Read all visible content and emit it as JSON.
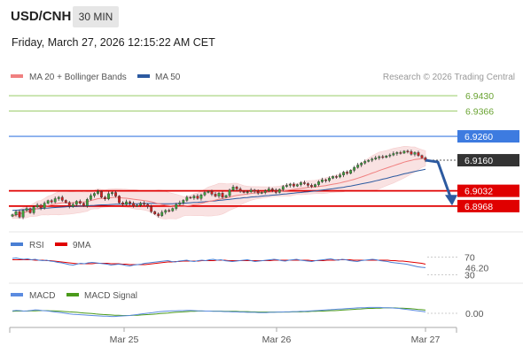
{
  "header": {
    "symbol": "USD/CNH",
    "timeframe": "30 MIN",
    "datetime": "Friday, March 27, 2026 12:15:22 AM CET"
  },
  "copyright": "Research © 2026 Trading Central",
  "colors": {
    "ma20": "#f08080",
    "ma50": "#2c5aa0",
    "bollinger_fill": "#f7d7d7",
    "resistance": "#99cc66",
    "pivot": "#3d7be0",
    "support": "#e00000",
    "price_label": "#333333",
    "rsi": "#4a7fd4",
    "rsi_ma": "#e00000",
    "macd": "#5b8be0",
    "macd_signal": "#4a9a1a",
    "arrow": "#2c5aa0"
  },
  "chart_data": [
    {
      "type": "candlestick",
      "legend": [
        "MA 20 + Bollinger Bands",
        "MA 50"
      ],
      "ylim": [
        6.8875,
        6.9475
      ],
      "x_ticks": [
        "Mar 25",
        "Mar 26",
        "Mar 27"
      ],
      "levels": [
        {
          "label": "6.9430",
          "value": 6.943,
          "kind": "resistance"
        },
        {
          "label": "6.9366",
          "value": 6.9366,
          "kind": "resistance"
        },
        {
          "label": "6.9260",
          "value": 6.926,
          "kind": "pivot"
        },
        {
          "label": "6.9160",
          "value": 6.916,
          "kind": "last"
        },
        {
          "label": "6.9032",
          "value": 6.9032,
          "kind": "support"
        },
        {
          "label": "6.8968",
          "value": 6.8968,
          "kind": "support"
        }
      ],
      "forecast_arrow": {
        "from": 6.916,
        "to": 6.8985
      },
      "closes": [
        6.8932,
        6.8945,
        6.8922,
        6.895,
        6.8958,
        6.894,
        6.8965,
        6.8972,
        6.896,
        6.898,
        6.8991,
        6.8985,
        6.8999,
        6.9005,
        6.8992,
        6.8983,
        6.8966,
        6.8975,
        6.8988,
        6.898,
        6.8969,
        6.8996,
        6.9012,
        6.9021,
        6.903,
        6.9005,
        6.8998,
        6.902,
        6.9025,
        6.901,
        6.8982,
        6.8975,
        6.8986,
        6.898,
        6.8968,
        6.8972,
        6.898,
        6.8975,
        6.8966,
        6.8945,
        6.8935,
        6.8928,
        6.8942,
        6.895,
        6.8948,
        6.8958,
        6.8975,
        6.8982,
        6.8992,
        6.9005,
        6.9002,
        6.901,
        6.9,
        6.9015,
        6.9025,
        6.903,
        6.9018,
        6.901,
        6.9022,
        6.9005,
        6.9012,
        6.9035,
        6.9048,
        6.904,
        6.903,
        6.9025,
        6.9028,
        6.9035,
        6.903,
        6.9022,
        6.9025,
        6.9032,
        6.904,
        6.9035,
        6.9025,
        6.9038,
        6.905,
        6.9055,
        6.906,
        6.9052,
        6.9058,
        6.9066,
        6.9062,
        6.9055,
        6.905,
        6.9058,
        6.907,
        6.9078,
        6.9075,
        6.9085,
        6.9092,
        6.909,
        6.9098,
        6.911,
        6.9105,
        6.9118,
        6.913,
        6.914,
        6.9148,
        6.9155,
        6.916,
        6.9165,
        6.917,
        6.9175,
        6.9172,
        6.9178,
        6.9182,
        6.9188,
        6.9192,
        6.919,
        6.9198,
        6.9196,
        6.9185,
        6.9192,
        6.918,
        6.917,
        6.916
      ],
      "ma20": [
        6.8925,
        6.8931,
        6.8935,
        6.894,
        6.8945,
        6.8948,
        6.8952,
        6.8958,
        6.8961,
        6.8966,
        6.897,
        6.8973,
        6.8977,
        6.898,
        6.8982,
        6.8982,
        6.8981,
        6.8982,
        6.8984,
        6.8985,
        6.8985,
        6.8987,
        6.8991,
        6.8995,
        6.8999,
        6.9,
        6.9,
        6.9002,
        6.9004,
        6.9005,
        6.9004,
        6.9002,
        6.9001,
        6.8999,
        6.8997,
        6.8995,
        6.8993,
        6.8991,
        6.8989,
        6.8986,
        6.8982,
        6.8978,
        6.8975,
        6.8972,
        6.897,
        6.8968,
        6.8966,
        6.8966,
        6.8967,
        6.8969,
        6.8971,
        6.8974,
        6.8976,
        6.8979,
        6.8983,
        6.8987,
        6.899,
        6.8993,
        6.8997,
        6.8999,
        6.9002,
        6.9006,
        6.901,
        6.9013,
        6.9015,
        6.9017,
        6.9019,
        6.9021,
        6.9023,
        6.9024,
        6.9025,
        6.9026,
        6.9027,
        6.9028,
        6.9029,
        6.903,
        6.9032,
        6.9034,
        6.9036,
        6.9038,
        6.904,
        6.9042,
        6.9044,
        6.9046,
        6.9047,
        6.9048,
        6.905,
        6.9052,
        6.9054,
        6.9057,
        6.906,
        6.9062,
        6.9065,
        6.9069,
        6.9072,
        6.9076,
        6.908,
        6.9085,
        6.909,
        6.9095,
        6.91,
        6.9106,
        6.9111,
        6.9117,
        6.9122,
        6.9127,
        6.9132,
        6.9137,
        6.9142,
        6.9147,
        6.9152,
        6.9156,
        6.9159,
        6.9163,
        6.9165,
        6.9167,
        6.9168
      ],
      "ma50": [
        6.895,
        6.8951,
        6.8952,
        6.8953,
        6.8954,
        6.8955,
        6.8956,
        6.8957,
        6.8958,
        6.8959,
        6.896,
        6.8961,
        6.8962,
        6.8963,
        6.8964,
        6.8965,
        6.8966,
        6.8966,
        6.8967,
        6.8968,
        6.8968,
        6.8969,
        6.897,
        6.8971,
        6.8972,
        6.8973,
        6.8973,
        6.8974,
        6.8975,
        6.8976,
        6.8976,
        6.8977,
        6.8977,
        6.8978,
        6.8978,
        6.8978,
        6.8979,
        6.8979,
        6.8979,
        6.8979,
        6.8979,
        6.8978,
        6.8978,
        6.8978,
        6.8978,
        6.8978,
        6.8979,
        6.8979,
        6.898,
        6.8981,
        6.8982,
        6.8983,
        6.8984,
        6.8985,
        6.8986,
        6.8988,
        6.8989,
        6.899,
        6.8992,
        6.8993,
        6.8995,
        6.8996,
        6.8998,
        6.9,
        6.9001,
        6.9003,
        6.9004,
        6.9006,
        6.9007,
        6.9008,
        6.901,
        6.9011,
        6.9012,
        6.9014,
        6.9015,
        6.9016,
        6.9018,
        6.9019,
        6.9021,
        6.9022,
        6.9024,
        6.9025,
        6.9027,
        6.9028,
        6.903,
        6.9031,
        6.9033,
        6.9035,
        6.9037,
        6.9039,
        6.9041,
        6.9043,
        6.9045,
        6.9047,
        6.905,
        6.9052,
        6.9055,
        6.9058,
        6.9061,
        6.9064,
        6.9067,
        6.907,
        6.9074,
        6.9077,
        6.9081,
        6.9084,
        6.9088,
        6.9092,
        6.9095,
        6.9099,
        6.9103,
        6.9106,
        6.911,
        6.9113,
        6.9116,
        6.9119,
        6.9122
      ]
    },
    {
      "type": "line",
      "legend": [
        "RSI",
        "9MA"
      ],
      "y_ticks": [
        "70",
        "30"
      ],
      "last_value": "46.20",
      "ylim": [
        25,
        75
      ],
      "rsi": [
        67,
        68,
        66,
        65,
        66,
        64,
        65,
        63,
        62,
        63,
        61,
        60,
        58,
        57,
        55,
        53,
        52,
        54,
        56,
        55,
        57,
        58,
        57,
        56,
        55,
        54,
        52,
        53,
        54,
        53,
        51,
        50,
        52,
        53,
        54,
        56,
        57,
        58,
        59,
        60,
        61,
        62,
        60,
        59,
        61,
        62,
        63,
        61,
        60,
        62,
        63,
        62,
        64,
        65,
        63,
        64,
        62,
        61,
        60,
        61,
        62,
        63,
        64,
        62,
        60,
        61,
        62,
        63,
        64,
        65,
        64,
        62,
        61,
        63,
        64,
        65,
        63,
        62,
        61,
        60,
        62,
        63,
        64,
        65,
        66,
        64,
        63,
        65,
        64,
        62,
        61,
        60,
        62,
        63,
        64,
        65,
        64,
        62,
        61,
        60,
        58,
        57,
        56,
        55,
        54,
        52,
        50,
        48,
        47,
        46.2
      ],
      "ma9": [
        64,
        64,
        64,
        64,
        64,
        64,
        63,
        63,
        63,
        62,
        62,
        61,
        60,
        59,
        58,
        57,
        56,
        55,
        55,
        55,
        55,
        55,
        56,
        56,
        56,
        56,
        55,
        55,
        55,
        54,
        54,
        53,
        53,
        53,
        53,
        53,
        54,
        55,
        56,
        57,
        58,
        59,
        59,
        60,
        60,
        61,
        61,
        61,
        61,
        61,
        62,
        62,
        62,
        62,
        63,
        63,
        63,
        62,
        62,
        62,
        62,
        62,
        62,
        62,
        62,
        62,
        62,
        62,
        62,
        63,
        63,
        63,
        63,
        63,
        63,
        63,
        63,
        63,
        63,
        62,
        62,
        62,
        62,
        63,
        63,
        63,
        64,
        64,
        64,
        64,
        63,
        63,
        63,
        63,
        63,
        63,
        63,
        63,
        63,
        63,
        62,
        62,
        61,
        61,
        60,
        59,
        58,
        57,
        56,
        54
      ]
    },
    {
      "type": "line",
      "legend": [
        "MACD",
        "MACD Signal"
      ],
      "y_ticks": [
        "0.00"
      ],
      "ylim": [
        -0.004,
        0.004
      ],
      "macd": [
        0.001,
        0.0012,
        0.0011,
        0.0009,
        0.001,
        0.0012,
        0.0014,
        0.0013,
        0.0011,
        0.001,
        0.0008,
        0.0006,
        0.0004,
        0.0002,
        0.0,
        -0.0002,
        -0.0004,
        -0.0005,
        -0.0006,
        -0.0007,
        -0.0008,
        -0.0009,
        -0.001,
        -0.0011,
        -0.0012,
        -0.0012,
        -0.0013,
        -0.0013,
        -0.0012,
        -0.0011,
        -0.001,
        -0.0009,
        -0.0007,
        -0.0005,
        -0.0003,
        -0.0001,
        0.0001,
        0.0003,
        0.0005,
        0.0007,
        0.0008,
        0.0009,
        0.001,
        0.001,
        0.0011,
        0.0011,
        0.0012,
        0.0012,
        0.0011,
        0.001,
        0.001,
        0.0009,
        0.0009,
        0.0008,
        0.0008,
        0.0008,
        0.0007,
        0.0007,
        0.0006,
        0.0006,
        0.0005,
        0.0005,
        0.0004,
        0.0004,
        0.0004,
        0.0003,
        0.0003,
        0.0003,
        0.0004,
        0.0004,
        0.0005,
        0.0005,
        0.0006,
        0.0006,
        0.0007,
        0.0007,
        0.0008,
        0.0008,
        0.0009,
        0.001,
        0.0011,
        0.0012,
        0.0013,
        0.0014,
        0.0015,
        0.0016,
        0.0017,
        0.0018,
        0.0019,
        0.002,
        0.0021,
        0.0022,
        0.0023,
        0.0023,
        0.0024,
        0.0024,
        0.0024,
        0.0024,
        0.0023,
        0.0023,
        0.0022,
        0.0021,
        0.002,
        0.0018,
        0.0016,
        0.0014,
        0.0012,
        0.001,
        0.0008,
        0.0006
      ],
      "signal": [
        0.0008,
        0.0009,
        0.0009,
        0.0009,
        0.0009,
        0.001,
        0.001,
        0.0011,
        0.0011,
        0.0011,
        0.001,
        0.001,
        0.0009,
        0.0008,
        0.0007,
        0.0006,
        0.0005,
        0.0004,
        0.0002,
        0.0001,
        0.0,
        -0.0001,
        -0.0003,
        -0.0004,
        -0.0005,
        -0.0006,
        -0.0007,
        -0.0008,
        -0.0008,
        -0.0009,
        -0.0009,
        -0.0009,
        -0.0008,
        -0.0008,
        -0.0007,
        -0.0006,
        -0.0005,
        -0.0004,
        -0.0003,
        -0.0001,
        0.0,
        0.0001,
        0.0003,
        0.0004,
        0.0005,
        0.0006,
        0.0007,
        0.0008,
        0.0008,
        0.0009,
        0.0009,
        0.0009,
        0.0009,
        0.0009,
        0.0009,
        0.0009,
        0.0008,
        0.0008,
        0.0008,
        0.0008,
        0.0007,
        0.0007,
        0.0007,
        0.0006,
        0.0006,
        0.0005,
        0.0005,
        0.0005,
        0.0005,
        0.0005,
        0.0005,
        0.0005,
        0.0005,
        0.0005,
        0.0006,
        0.0006,
        0.0006,
        0.0007,
        0.0007,
        0.0008,
        0.0008,
        0.0009,
        0.0009,
        0.001,
        0.0011,
        0.0011,
        0.0012,
        0.0013,
        0.0014,
        0.0015,
        0.0016,
        0.0017,
        0.0018,
        0.0019,
        0.002,
        0.002,
        0.0021,
        0.0021,
        0.0022,
        0.0022,
        0.0022,
        0.0022,
        0.0021,
        0.0021,
        0.002,
        0.0019,
        0.0018,
        0.0016,
        0.0015,
        0.0013
      ]
    }
  ]
}
